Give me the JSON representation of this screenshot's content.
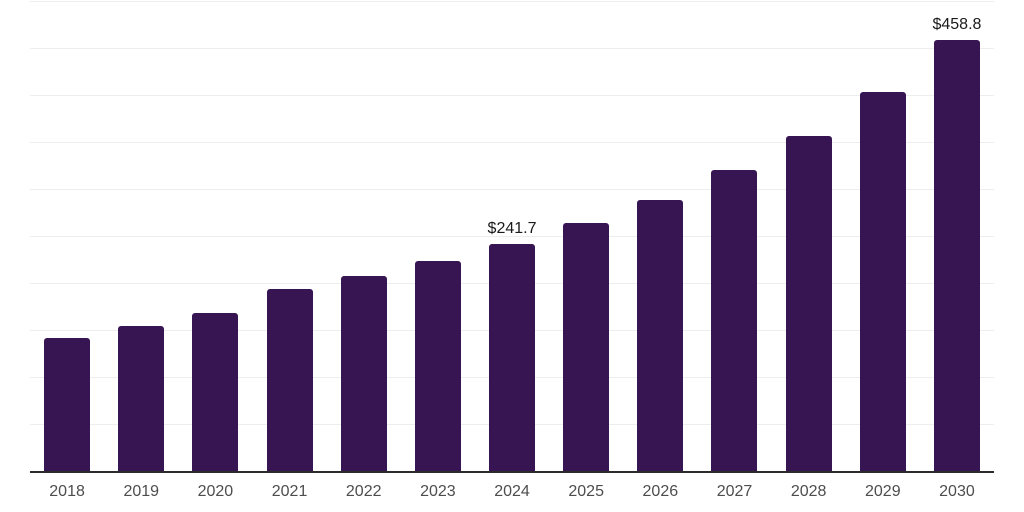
{
  "chart_data": {
    "type": "bar",
    "categories": [
      "2018",
      "2019",
      "2020",
      "2021",
      "2022",
      "2023",
      "2024",
      "2025",
      "2026",
      "2027",
      "2028",
      "2029",
      "2030"
    ],
    "values": [
      141.5,
      153.9,
      167.8,
      193.6,
      207.9,
      223.4,
      241.7,
      264.1,
      288.6,
      320.2,
      356.7,
      402.9,
      458.8
    ],
    "data_labels": {
      "2024": "$241.7",
      "2030": "$458.8"
    },
    "value_prefix": "$",
    "title": "",
    "xlabel": "",
    "ylabel": "",
    "ylim": [
      0,
      500
    ],
    "gridline_interval": 50,
    "grid": true,
    "legend": false,
    "y_axis_labels_visible": false,
    "colors": {
      "bar": "#371553",
      "axis_line": "#2b2b2b",
      "gridline": "#ededed",
      "value_label": "#1a1a1a",
      "tick_label": "#4d4d4d",
      "background": "#ffffff"
    }
  }
}
